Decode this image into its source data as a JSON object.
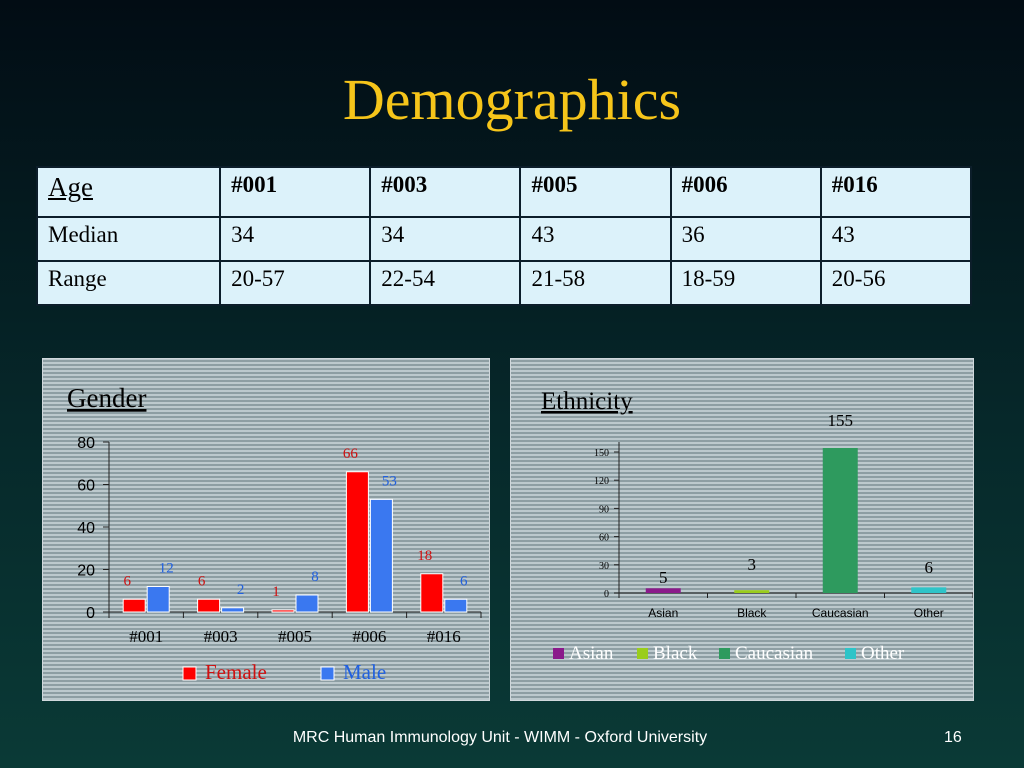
{
  "slide": {
    "title": "Demographics",
    "footer": "MRC Human Immunology Unit - WIMM - Oxford University",
    "page_number": "16"
  },
  "age_table": {
    "corner_label": "Age",
    "headers": [
      "#001",
      "#003",
      "#005",
      "#006",
      "#016"
    ],
    "rows": [
      {
        "label": "Median",
        "values": [
          "34",
          "34",
          "43",
          "36",
          "43"
        ]
      },
      {
        "label": "Range",
        "values": [
          "20-57",
          "22-54",
          "21-58",
          "18-59",
          "20-56"
        ]
      }
    ]
  },
  "chart_data": [
    {
      "type": "bar",
      "title": "Gender",
      "categories": [
        "#001",
        "#003",
        "#005",
        "#006",
        "#016"
      ],
      "series": [
        {
          "name": "Female",
          "values": [
            6,
            6,
            1,
            66,
            18
          ],
          "color": "#ff0000",
          "label_color": "#d01010"
        },
        {
          "name": "Male",
          "values": [
            12,
            2,
            8,
            53,
            6
          ],
          "color": "#3a78f0",
          "label_color": "#2060e0"
        }
      ],
      "ylim": [
        0,
        80
      ],
      "yticks": [
        0,
        20,
        40,
        60,
        80
      ],
      "legend": "bottom",
      "grid": false
    },
    {
      "type": "bar",
      "title": "Ethnicity",
      "categories": [
        "Asian",
        "Black",
        "Caucasian",
        "Other"
      ],
      "values": [
        5,
        3,
        155,
        6
      ],
      "colors": [
        "#8b1a8b",
        "#9acd1c",
        "#2e9a5e",
        "#2ec4c8"
      ],
      "ylim": [
        0,
        150
      ],
      "yticks": [
        0,
        30,
        60,
        90,
        120,
        150
      ],
      "legend": "bottom",
      "grid": false
    }
  ]
}
